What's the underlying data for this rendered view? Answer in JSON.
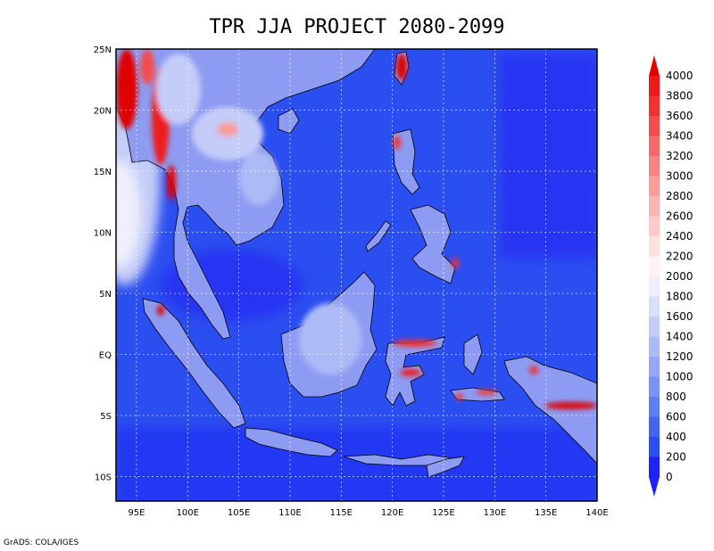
{
  "title": "TPR JJA PROJECT 2080-2099",
  "credit": "GrADS: COLA/IGES",
  "map": {
    "lon_range": [
      93,
      140
    ],
    "lat_range": [
      -12,
      25
    ],
    "x_ticks": [
      "95E",
      "100E",
      "105E",
      "110E",
      "115E",
      "120E",
      "125E",
      "130E",
      "135E",
      "140E"
    ],
    "y_ticks": [
      "25N",
      "20N",
      "15N",
      "10N",
      "5N",
      "EQ",
      "5S",
      "10S"
    ],
    "grid": true,
    "ocean_color": "#2b4ef0",
    "land_color": "#8d9cf2"
  },
  "colorbar": {
    "levels": [
      "0",
      "200",
      "400",
      "600",
      "800",
      "1000",
      "1200",
      "1400",
      "1600",
      "1800",
      "2000",
      "2200",
      "2400",
      "2600",
      "2800",
      "3000",
      "3200",
      "3400",
      "3600",
      "3800",
      "4000"
    ],
    "colors": [
      "#1e22f5",
      "#2b4ef0",
      "#4466ee",
      "#5f7ef0",
      "#7a92f2",
      "#94a6f4",
      "#acbaf6",
      "#c4ccf8",
      "#dadffa",
      "#eeeffc",
      "#fff2f2",
      "#fde0e0",
      "#fccaca",
      "#fab4b4",
      "#f89c9c",
      "#f68484",
      "#f46a6a",
      "#f24e4e",
      "#f03232",
      "#ee1a1a",
      "#e00000"
    ],
    "position": "right"
  }
}
